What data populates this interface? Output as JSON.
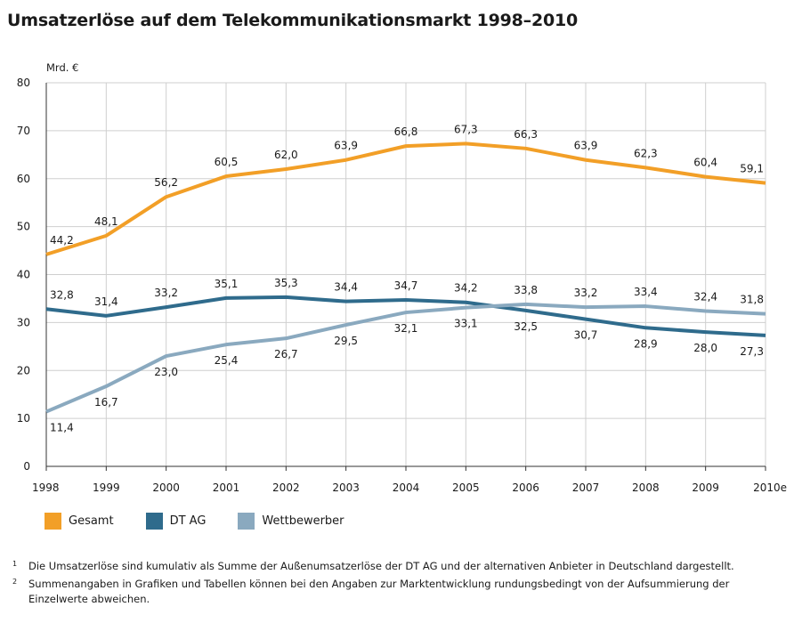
{
  "title": "Umsatzerlöse auf dem Telekommunikationsmarkt 1998–2010",
  "chart_data": {
    "type": "line",
    "ylabel": "Mrd. €",
    "ylim": [
      0,
      80
    ],
    "yticks": [
      0,
      10,
      20,
      30,
      40,
      50,
      60,
      70,
      80
    ],
    "categories": [
      "1998",
      "1999",
      "2000",
      "2001",
      "2002",
      "2003",
      "2004",
      "2005",
      "2006",
      "2007",
      "2008",
      "2009",
      "2010e"
    ],
    "grid": true,
    "legend_position": "bottom-left",
    "series": [
      {
        "name": "Gesamt",
        "color": "#f29f27",
        "values": [
          44.2,
          48.1,
          56.2,
          60.5,
          62.0,
          63.9,
          66.8,
          67.3,
          66.3,
          63.9,
          62.3,
          60.4,
          59.1
        ],
        "labels": [
          "44,2",
          "48,1",
          "56,2",
          "60,5",
          "62,0",
          "63,9",
          "66,8",
          "67,3",
          "66,3",
          "63,9",
          "62,3",
          "60,4",
          "59,1"
        ]
      },
      {
        "name": "DT AG",
        "color": "#2f6b8c",
        "values": [
          32.8,
          31.4,
          33.2,
          35.1,
          35.3,
          34.4,
          34.7,
          34.2,
          32.5,
          30.7,
          28.9,
          28.0,
          27.3
        ],
        "labels": [
          "32,8",
          "31,4",
          "33,2",
          "35,1",
          "35,3",
          "34,4",
          "34,7",
          "34,2",
          "32,5",
          "30,7",
          "28,9",
          "28,0",
          "27,3"
        ]
      },
      {
        "name": "Wettbewerber",
        "color": "#8aa9bf",
        "values": [
          11.4,
          16.7,
          23.0,
          25.4,
          26.7,
          29.5,
          32.1,
          33.1,
          33.8,
          33.2,
          33.4,
          32.4,
          31.8
        ],
        "labels": [
          "11,4",
          "16,7",
          "23,0",
          "25,4",
          "26,7",
          "29,5",
          "32,1",
          "33,1",
          "33,8",
          "33,2",
          "33,4",
          "32,4",
          "31,8"
        ]
      }
    ]
  },
  "legend": [
    {
      "label": "Gesamt",
      "color": "#f29f27"
    },
    {
      "label": "DT AG",
      "color": "#2f6b8c"
    },
    {
      "label": "Wettbewerber",
      "color": "#8aa9bf"
    }
  ],
  "footnotes": [
    {
      "num": "1",
      "text": "Die Umsatzerlöse sind kumulativ als Summe der Außenumsatzerlöse der DT AG und der alternativen Anbieter in Deutschland dargestellt."
    },
    {
      "num": "2",
      "text": "Summenangaben in Grafiken und Tabellen können bei den Angaben zur Marktentwicklung rundungsbedingt von der Aufsummierung der Einzelwerte abweichen."
    }
  ]
}
